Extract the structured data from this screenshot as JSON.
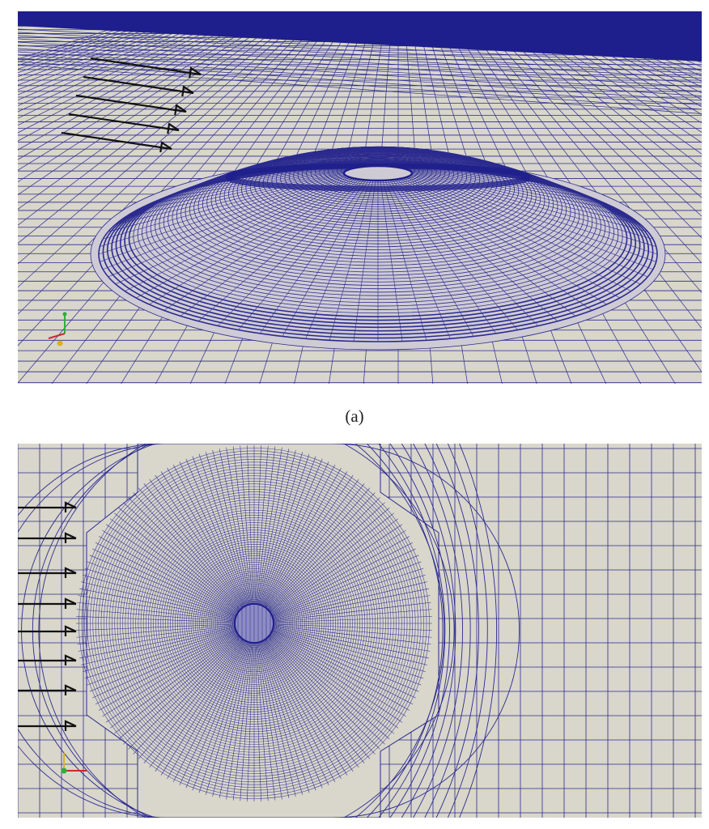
{
  "figure": {
    "panel_a": {
      "caption": "(a)",
      "view": "perspective",
      "inflow_arrow_count": 5,
      "axes_triad": [
        "red",
        "green",
        "yellow"
      ]
    },
    "panel_b": {
      "view": "top",
      "inflow_arrow_count": 8,
      "axes_triad": [
        "red",
        "green",
        "yellow"
      ]
    }
  },
  "colors": {
    "mesh_background": "#d9d6cb",
    "mesh_lines": "#2b2b8f",
    "dense_band": "#1e1e8c",
    "arrow": "#111111"
  }
}
